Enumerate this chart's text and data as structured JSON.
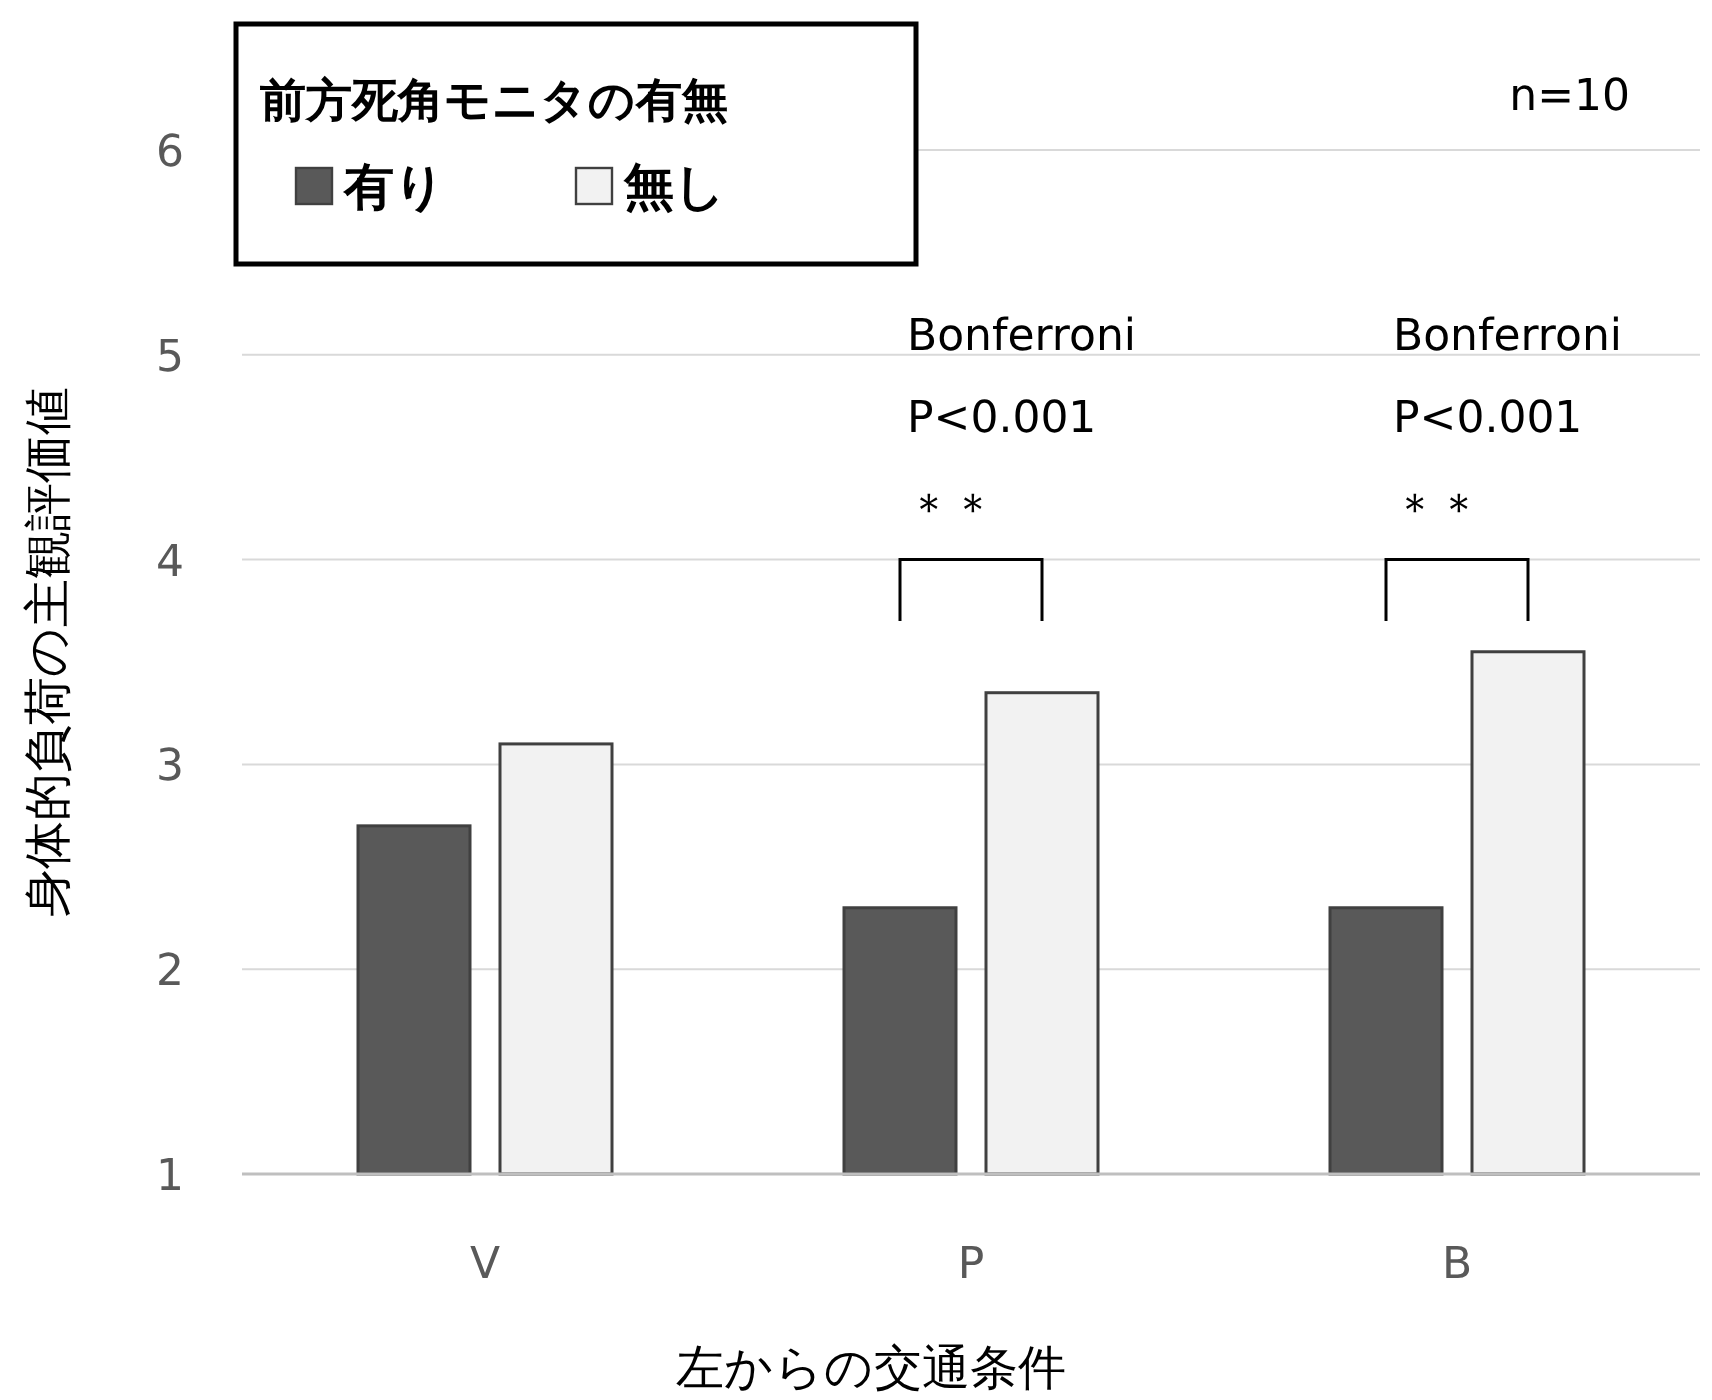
{
  "chart_data": {
    "type": "bar",
    "categories": [
      "V",
      "P",
      "B"
    ],
    "series": [
      {
        "name": "有り",
        "color": "#595959",
        "values": [
          2.7,
          2.3,
          2.3
        ]
      },
      {
        "name": "無し",
        "color": "#f2f2f2",
        "values": [
          3.1,
          3.35,
          3.55
        ]
      }
    ],
    "ylim": [
      1,
      6
    ],
    "yticks": [
      1,
      2,
      3,
      4,
      5,
      6
    ],
    "grid": "y",
    "legend": "top left",
    "legend_title": "前方死角モニタの有無",
    "ylabel": "身体的負荷の主観評価値",
    "xlabel": "左からの交通条件",
    "annotations": [
      "n=10",
      "Bonferroni",
      "P<0.001",
      "＊＊",
      "Bonferroni",
      "P<0.001",
      "＊＊"
    ]
  }
}
